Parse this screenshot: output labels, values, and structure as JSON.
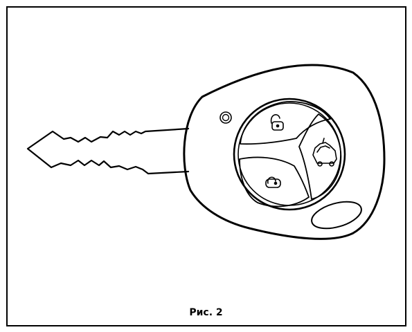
{
  "figure": {
    "caption": "Рис. 2"
  },
  "icons": {
    "top_button": "padlock-open-icon",
    "right_button": "car-trunk-icon",
    "bottom_button": "padlock-closed-icon",
    "small_button": "round-button-icon",
    "led": "led-indicator-icon"
  },
  "colors": {
    "stroke": "#000000",
    "background": "#ffffff"
  }
}
